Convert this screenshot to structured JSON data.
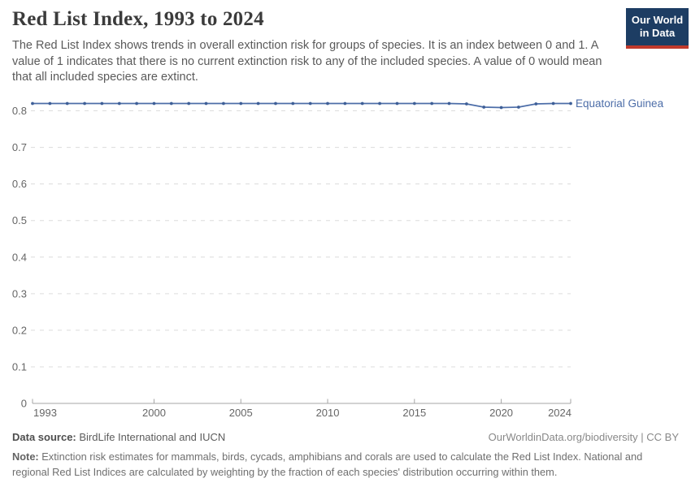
{
  "header": {
    "title": "Red List Index, 1993 to 2024",
    "subtitle": "The Red List Index shows trends in overall extinction risk for groups of species. It is an index between 0 and 1. A value of 1 indicates that there is no current extinction risk to any of the included species. A value of 0 would mean that all included species are extinct.",
    "logo": {
      "line1": "Our World",
      "line2": "in Data",
      "bg_color": "#1d3d63",
      "underline_color": "#c0392b"
    }
  },
  "chart_data": {
    "type": "line",
    "title": "Red List Index, 1993 to 2024",
    "xlabel": "",
    "ylabel": "",
    "x": [
      1993,
      1994,
      1995,
      1996,
      1997,
      1998,
      1999,
      2000,
      2001,
      2002,
      2003,
      2004,
      2005,
      2006,
      2007,
      2008,
      2009,
      2010,
      2011,
      2012,
      2013,
      2014,
      2015,
      2016,
      2017,
      2018,
      2019,
      2020,
      2021,
      2022,
      2023,
      2024
    ],
    "series": [
      {
        "name": "Equatorial Guinea",
        "color": "#4c6da8",
        "point_color": "#3e5f97",
        "values": [
          0.82,
          0.82,
          0.82,
          0.82,
          0.82,
          0.82,
          0.82,
          0.82,
          0.82,
          0.82,
          0.82,
          0.82,
          0.82,
          0.82,
          0.82,
          0.82,
          0.82,
          0.82,
          0.82,
          0.82,
          0.82,
          0.82,
          0.82,
          0.82,
          0.82,
          0.819,
          0.81,
          0.809,
          0.81,
          0.819,
          0.82,
          0.82
        ]
      }
    ],
    "ylim": [
      0,
      0.85
    ],
    "yticks": [
      0,
      0.1,
      0.2,
      0.3,
      0.4,
      0.5,
      0.6,
      0.7,
      0.8
    ],
    "ytick_labels": [
      "0",
      "0.1",
      "0.2",
      "0.3",
      "0.4",
      "0.5",
      "0.6",
      "0.7",
      "0.8"
    ],
    "xticks": [
      1993,
      2000,
      2005,
      2010,
      2015,
      2020,
      2024
    ],
    "xtick_labels": [
      "1993",
      "2000",
      "2005",
      "2010",
      "2015",
      "2020",
      "2024"
    ],
    "grid": "horizontal-dashed",
    "legend_position": "right-of-line",
    "grid_color": "#dcdcdc",
    "axis_color": "#a5a5a5",
    "tick_label_color": "#666666"
  },
  "footer": {
    "data_source_label": "Data source:",
    "data_source": " BirdLife International and IUCN",
    "attribution": "OurWorldinData.org/biodiversity | CC BY",
    "note_label": "Note:",
    "note": " Extinction risk estimates for mammals, birds, cycads, amphibians and corals are used to calculate the Red List Index. National and regional Red List Indices are calculated by weighting by the fraction of each species' distribution occurring within them."
  }
}
